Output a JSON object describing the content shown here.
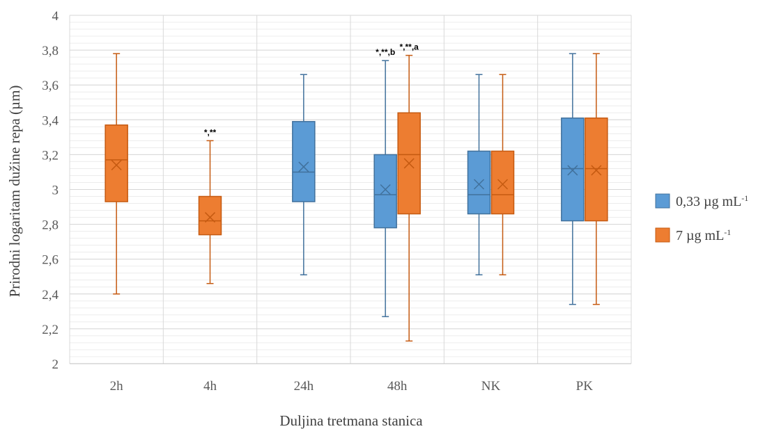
{
  "chart_data": {
    "type": "box",
    "xlabel": "Duljina tretmana stanica",
    "ylabel": "Prirodni logaritam dužine repa (µm)",
    "ylim": [
      2,
      4
    ],
    "yticks": [
      2,
      2.2,
      2.4,
      2.6,
      2.8,
      3,
      3.2,
      3.4,
      3.6,
      3.8,
      4
    ],
    "ytick_labels": [
      "2",
      "2,2",
      "2,4",
      "2,6",
      "2,8",
      "3",
      "3,2",
      "3,4",
      "3,6",
      "3,8",
      "4"
    ],
    "grid": "on",
    "categories": [
      "2h",
      "4h",
      "24h",
      "48h",
      "NK",
      "PK"
    ],
    "legend": {
      "placement": "right",
      "items": [
        {
          "label": "0,33 µg mL",
          "sup": "-1",
          "color": "#5B9BD5"
        },
        {
          "label": "7 µg mL",
          "sup": "-1",
          "color": "#ED7D31"
        }
      ]
    },
    "series": [
      {
        "name": "0,33 µg mL-1",
        "color": "#5B9BD5",
        "edge": "#41719C",
        "boxes": [
          null,
          null,
          {
            "min": 2.51,
            "q1": 2.93,
            "median": 3.1,
            "q3": 3.39,
            "max": 3.66,
            "mean": 3.13
          },
          {
            "min": 2.27,
            "q1": 2.78,
            "median": 2.97,
            "q3": 3.2,
            "max": 3.74,
            "mean": 3.0
          },
          {
            "min": 2.51,
            "q1": 2.86,
            "median": 2.97,
            "q3": 3.22,
            "max": 3.66,
            "mean": 3.03
          },
          {
            "min": 2.34,
            "q1": 2.82,
            "median": 3.12,
            "q3": 3.41,
            "max": 3.78,
            "mean": 3.11
          }
        ]
      },
      {
        "name": "7 µg mL-1",
        "color": "#ED7D31",
        "edge": "#C55A11",
        "boxes": [
          {
            "min": 2.4,
            "q1": 2.93,
            "median": 3.17,
            "q3": 3.37,
            "max": 3.78,
            "mean": 3.14
          },
          {
            "min": 2.46,
            "q1": 2.74,
            "median": 2.82,
            "q3": 2.96,
            "max": 3.28,
            "mean": 2.84
          },
          null,
          {
            "min": 2.13,
            "q1": 2.86,
            "median": 3.2,
            "q3": 3.44,
            "max": 3.77,
            "mean": 3.15
          },
          {
            "min": 2.51,
            "q1": 2.86,
            "median": 2.97,
            "q3": 3.22,
            "max": 3.66,
            "mean": 3.03
          },
          {
            "min": 2.34,
            "q1": 2.82,
            "median": 3.12,
            "q3": 3.41,
            "max": 3.78,
            "mean": 3.11
          }
        ]
      }
    ],
    "annotations": [
      {
        "category": "4h",
        "series": 1,
        "text": "*,**"
      },
      {
        "category": "48h",
        "series": 0,
        "text": "*,**,b"
      },
      {
        "category": "48h",
        "series": 1,
        "text": "*,**,a"
      }
    ]
  }
}
